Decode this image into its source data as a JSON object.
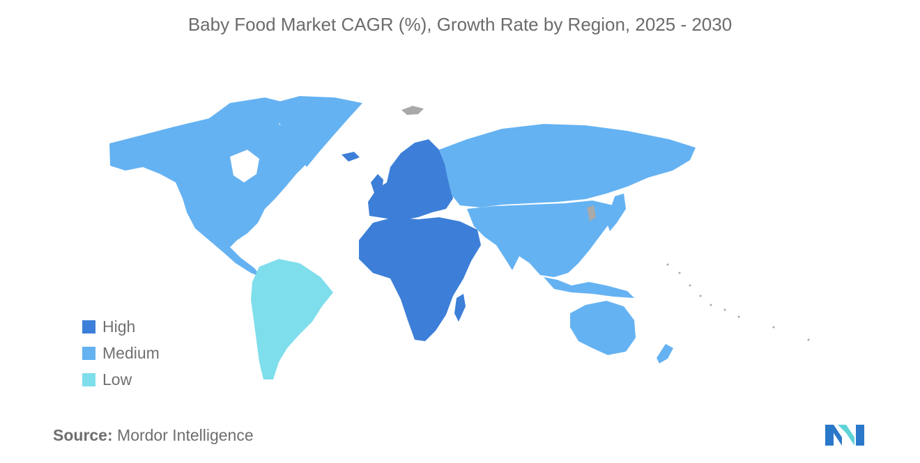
{
  "title": "Baby Food Market CAGR (%), Growth Rate by Region, 2025 - 2030",
  "legend": [
    {
      "label": "High",
      "color": "#3d7fd8"
    },
    {
      "label": "Medium",
      "color": "#64b2f2"
    },
    {
      "label": "Low",
      "color": "#7fdeeb"
    }
  ],
  "no_data_color": "#a9a9a9",
  "regions": [
    {
      "name": "North America",
      "level": "Medium"
    },
    {
      "name": "Greenland",
      "level": "Medium"
    },
    {
      "name": "South America",
      "level": "Low"
    },
    {
      "name": "Europe",
      "level": "High"
    },
    {
      "name": "Middle East and Africa",
      "level": "High"
    },
    {
      "name": "Russia and Central Asia",
      "level": "Medium"
    },
    {
      "name": "Asia-Pacific",
      "level": "Medium"
    },
    {
      "name": "Australia and New Zealand",
      "level": "Medium"
    }
  ],
  "source": {
    "label": "Source:",
    "value": "Mordor Intelligence"
  },
  "logo": "mordor-intelligence-logo"
}
